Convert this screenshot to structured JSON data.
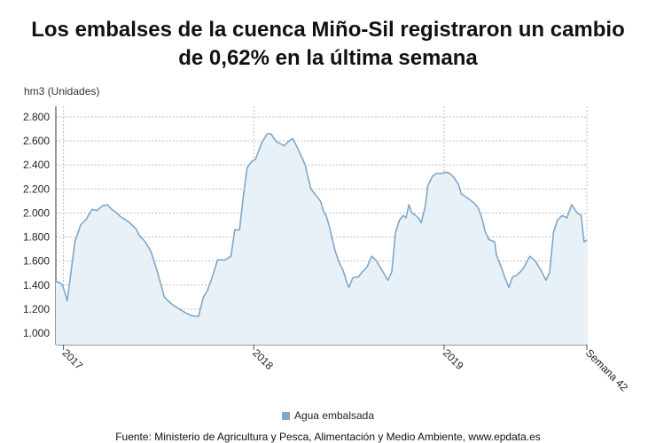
{
  "title_line1": "Los embalses de la cuenca Miño-Sil registraron un cambio",
  "title_line2": "de 0,62% en la última semana",
  "source": "Fuente: Ministerio de Agricultura y Pesca, Alimentación y Medio Ambiente, www.epdata.es",
  "chart_data": {
    "type": "area",
    "ylabel": "hm3 (Unidades)",
    "ylim": [
      1000,
      2800
    ],
    "yticks": [
      1000,
      1200,
      1400,
      1600,
      1800,
      2000,
      2200,
      2400,
      2600,
      2800
    ],
    "ytick_labels": [
      "1.000",
      "1.200",
      "1.400",
      "1.600",
      "1.800",
      "2.000",
      "2.200",
      "2.400",
      "2.600",
      "2.800"
    ],
    "xlim": [
      2016.96,
      2019.75
    ],
    "xticks": [
      {
        "value": 2017.0,
        "label": "2017"
      },
      {
        "value": 2018.0,
        "label": "2018"
      },
      {
        "value": 2019.0,
        "label": "2019"
      },
      {
        "value": 2019.75,
        "label": "Semana 42"
      }
    ],
    "grid": true,
    "legend_position": "bottom",
    "color": "#7fa7c8",
    "fill_color": "#e9f1f8",
    "series": [
      {
        "name": "Agua embalsada",
        "x": [
          2016.96,
          2016.98,
          2016.995,
          2017.02,
          2017.06,
          2017.09,
          2017.12,
          2017.15,
          2017.175,
          2017.205,
          2017.23,
          2017.255,
          2017.28,
          2017.3,
          2017.34,
          2017.38,
          2017.4,
          2017.43,
          2017.46,
          2017.49,
          2017.53,
          2017.57,
          2017.61,
          2017.63,
          2017.665,
          2017.69,
          2017.71,
          2017.735,
          2017.755,
          2017.78,
          2017.81,
          2017.85,
          2017.88,
          2017.9,
          2017.925,
          2017.945,
          2017.965,
          2017.99,
          2018.01,
          2018.04,
          2018.07,
          2018.09,
          2018.115,
          2018.135,
          2018.16,
          2018.185,
          2018.205,
          2018.23,
          2018.25,
          2018.27,
          2018.28,
          2018.3,
          2018.325,
          2018.35,
          2018.37,
          2018.38,
          2018.395,
          2018.41,
          2018.425,
          2018.445,
          2018.47,
          2018.485,
          2018.5,
          2018.52,
          2018.55,
          2018.57,
          2018.595,
          2018.62,
          2018.645,
          2018.675,
          2018.705,
          2018.725,
          2018.745,
          2018.765,
          2018.785,
          2018.8,
          2018.815,
          2018.83,
          2018.85,
          2018.865,
          2018.88,
          2018.9,
          2018.915,
          2018.94,
          2018.96,
          2018.99,
          2019.01,
          2019.03,
          2019.05,
          2019.075,
          2019.09,
          2019.11,
          2019.135,
          2019.16,
          2019.18,
          2019.2,
          2019.215,
          2019.235,
          2019.25,
          2019.265,
          2019.275,
          2019.3,
          2019.32,
          2019.34,
          2019.36,
          2019.38,
          2019.4,
          2019.42,
          2019.45,
          2019.48,
          2019.51,
          2019.535,
          2019.555,
          2019.575,
          2019.595,
          2019.62,
          2019.645,
          2019.67,
          2019.7,
          2019.72,
          2019.735,
          2019.75
        ],
        "values": [
          1430,
          1420,
          1400,
          1270,
          1760,
          1900,
          1950,
          2030,
          2020,
          2060,
          2070,
          2030,
          2000,
          1970,
          1930,
          1870,
          1810,
          1760,
          1680,
          1530,
          1300,
          1240,
          1200,
          1180,
          1150,
          1140,
          1140,
          1300,
          1350,
          1460,
          1610,
          1610,
          1640,
          1860,
          1860,
          2140,
          2380,
          2430,
          2450,
          2580,
          2660,
          2660,
          2600,
          2580,
          2560,
          2600,
          2620,
          2540,
          2470,
          2400,
          2330,
          2200,
          2150,
          2100,
          2000,
          1980,
          1900,
          1800,
          1700,
          1600,
          1520,
          1440,
          1380,
          1460,
          1470,
          1510,
          1550,
          1640,
          1600,
          1520,
          1440,
          1510,
          1840,
          1940,
          1980,
          1960,
          2070,
          2000,
          1980,
          1960,
          1920,
          2050,
          2230,
          2310,
          2330,
          2330,
          2340,
          2330,
          2300,
          2240,
          2160,
          2140,
          2110,
          2080,
          2040,
          1950,
          1850,
          1780,
          1770,
          1760,
          1650,
          1550,
          1460,
          1380,
          1470,
          1480,
          1510,
          1550,
          1640,
          1600,
          1520,
          1440,
          1510,
          1840,
          1940,
          1980,
          1960,
          2070,
          2000,
          1980,
          1760,
          1775
        ]
      }
    ]
  }
}
